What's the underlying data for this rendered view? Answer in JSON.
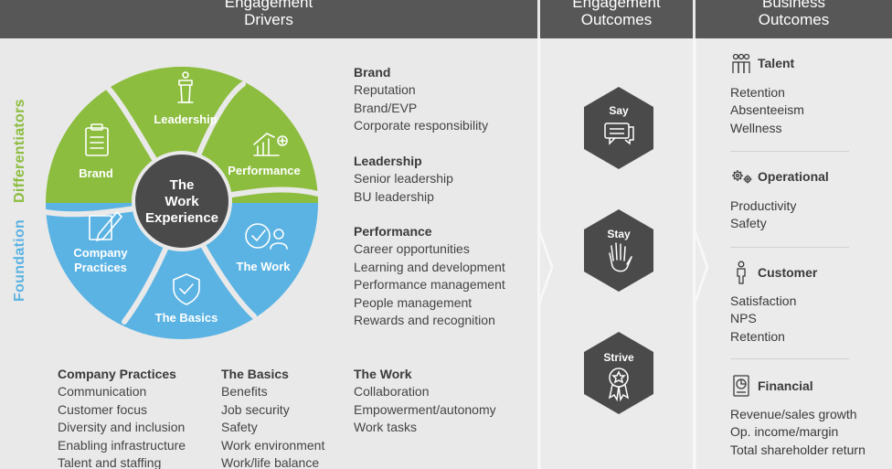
{
  "headers": {
    "drivers": [
      "Engagement",
      "Drivers"
    ],
    "engagement_outcomes": [
      "Engagement",
      "Outcomes"
    ],
    "business_outcomes": [
      "Business",
      "Outcomes"
    ]
  },
  "side_labels": {
    "differentiators": "Differentiators",
    "foundation": "Foundation"
  },
  "wheel": {
    "center": [
      "The",
      "Work",
      "Experience"
    ],
    "segments": {
      "leadership": "Leadership",
      "brand": "Brand",
      "performance": "Performance",
      "company_practices": [
        "Company",
        "Practices"
      ],
      "the_basics": "The Basics",
      "the_work": "The Work"
    },
    "colors": {
      "green": "#8cbd3f",
      "blue": "#5bb3e3",
      "center": "#4a4a4a"
    }
  },
  "driver_lists": {
    "brand": {
      "title": "Brand",
      "items": [
        "Reputation",
        "Brand/EVP",
        "Corporate responsibility"
      ]
    },
    "leadership": {
      "title": "Leadership",
      "items": [
        "Senior leadership",
        "BU leadership"
      ]
    },
    "performance": {
      "title": "Performance",
      "items": [
        "Career opportunities",
        "Learning and development",
        "Performance management",
        "People management",
        "Rewards and recognition"
      ]
    },
    "company_practices": {
      "title": "Company Practices",
      "items": [
        "Communication",
        "Customer focus",
        "Diversity and inclusion",
        "Enabling infrastructure",
        "Talent and staffing"
      ]
    },
    "the_basics": {
      "title": "The Basics",
      "items": [
        "Benefits",
        "Job security",
        "Safety",
        "Work environment",
        "Work/life balance"
      ]
    },
    "the_work": {
      "title": "The Work",
      "items": [
        "Collaboration",
        "Empowerment/autonomy",
        "Work tasks"
      ]
    }
  },
  "engagement_outcomes": {
    "say": "Say",
    "stay": "Stay",
    "strive": "Strive"
  },
  "business_outcomes": {
    "talent": {
      "title": "Talent",
      "items": [
        "Retention",
        "Absenteeism",
        "Wellness"
      ]
    },
    "operational": {
      "title": "Operational",
      "items": [
        "Productivity",
        "Safety"
      ]
    },
    "customer": {
      "title": "Customer",
      "items": [
        "Satisfaction",
        "NPS",
        "Retention"
      ]
    },
    "financial": {
      "title": "Financial",
      "items": [
        "Revenue/sales growth",
        "Op. income/margin",
        "Total shareholder return"
      ]
    }
  }
}
